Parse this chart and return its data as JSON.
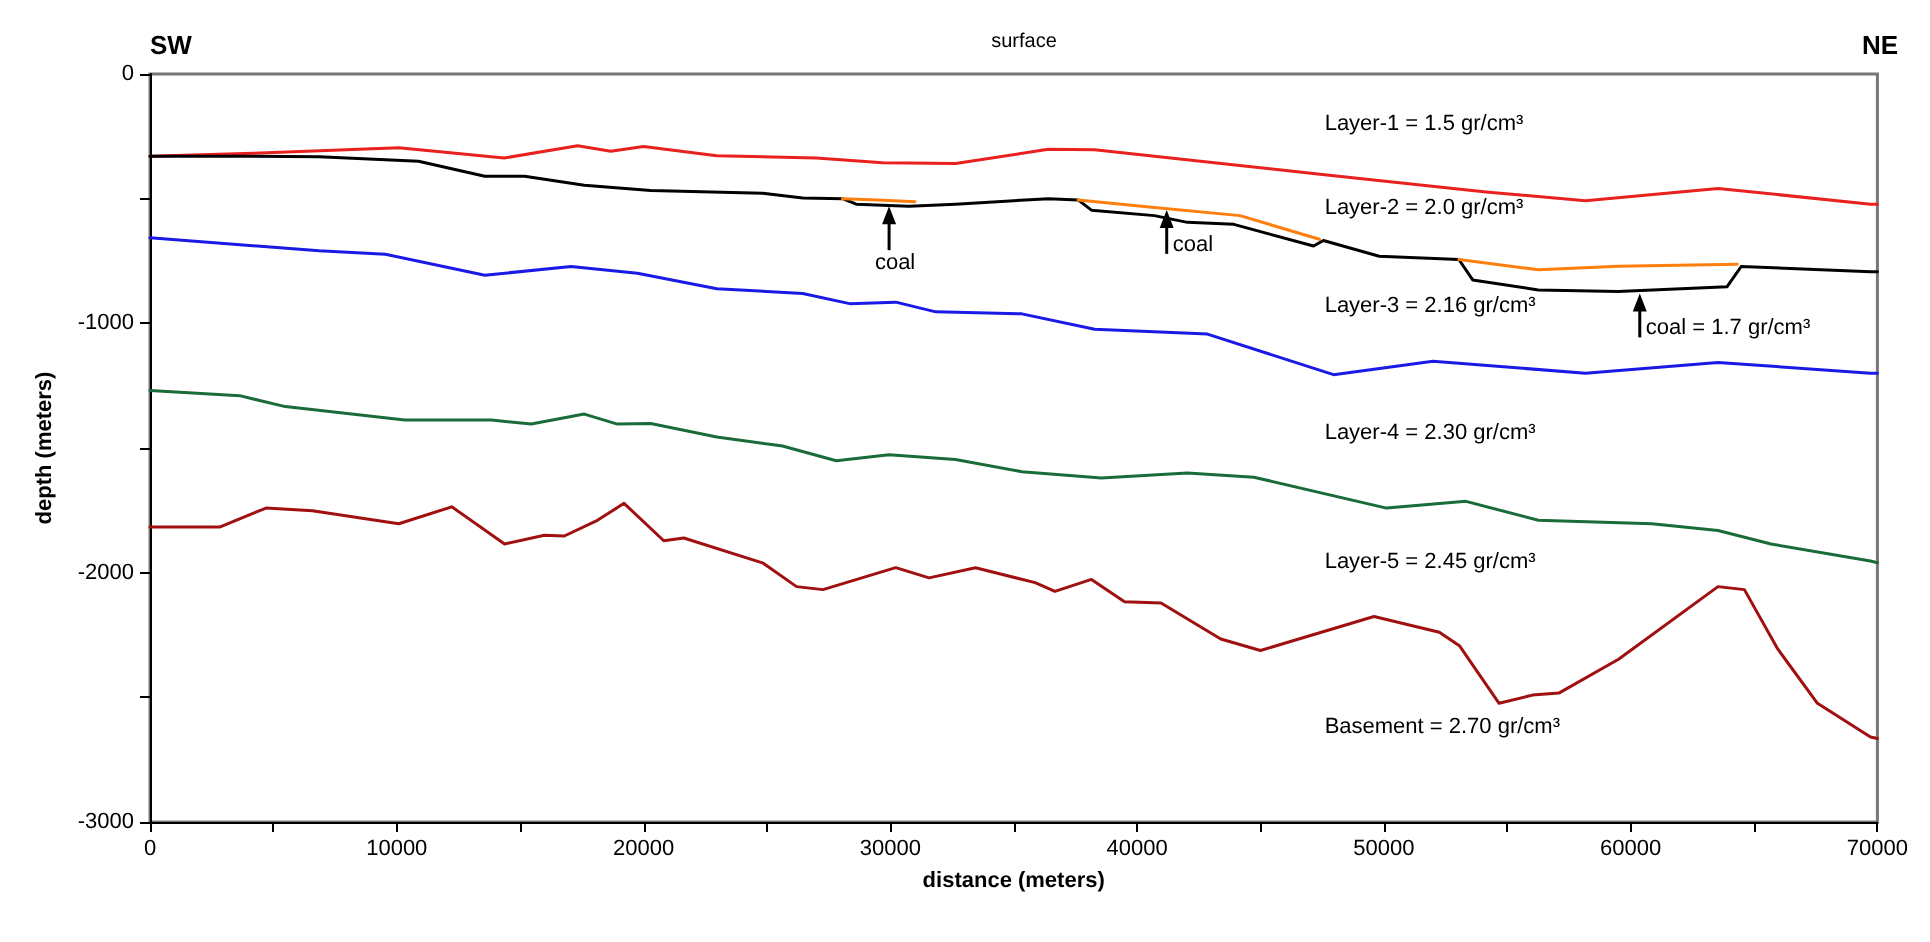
{
  "chart_data": {
    "type": "line",
    "xlabel": "distance (meters)",
    "ylabel": "depth (meters)",
    "xlim": [
      0,
      70000
    ],
    "ylim": [
      -3000,
      0
    ],
    "xticks": [
      0,
      {
        "value": 5000,
        "label": null
      },
      10000,
      {
        "value": 15000,
        "label": null
      },
      20000,
      {
        "value": 25000,
        "label": null
      },
      30000,
      {
        "value": 35000,
        "label": null
      },
      40000,
      {
        "value": 45000,
        "label": null
      },
      50000,
      {
        "value": 55000,
        "label": null
      },
      60000,
      {
        "value": 65000,
        "label": null
      },
      70000
    ],
    "yticks": [
      -3000,
      {
        "value": -2500,
        "label": null
      },
      -2000,
      {
        "value": -1500,
        "label": null
      },
      -1000,
      {
        "value": -500,
        "label": null
      },
      0
    ],
    "grid": false,
    "marker": "none",
    "line_style": "solid",
    "series": [
      {
        "color": "#e8201e",
        "x": [
          0,
          4170,
          10080,
          14350,
          17330,
          18670,
          20000,
          22970,
          27000,
          29680,
          32650,
          36400,
          38280,
          47690,
          54140,
          58170,
          63540,
          69720,
          70000
        ],
        "values": [
          -330,
          -318,
          -296,
          -337,
          -288,
          -310,
          -291,
          -328,
          -337,
          -356,
          -359,
          -302,
          -304,
          -405,
          -473,
          -508,
          -459,
          -522,
          -522
        ]
      },
      {
        "color": "#000000",
        "x": [
          0,
          4170,
          6850,
          10880,
          13570,
          15180,
          17600,
          20290,
          24830,
          26450,
          28060,
          28620,
          30760,
          32640,
          36400,
          37610,
          38150,
          40700,
          42040,
          43920,
          47150,
          47550,
          49810,
          53040,
          53600,
          56260,
          59490,
          63910,
          64480,
          69720,
          70000
        ],
        "values": [
          -330,
          -330,
          -332,
          -350,
          -410,
          -410,
          -446,
          -467,
          -478,
          -497,
          -500,
          -522,
          -530,
          -522,
          -500,
          -505,
          -546,
          -568,
          -595,
          -603,
          -690,
          -668,
          -731,
          -744,
          -826,
          -866,
          -872,
          -853,
          -772,
          -793,
          -793
        ]
      },
      {
        "color": "#ff7f0e",
        "x": [
          28060,
          29500,
          31000,
          33000,
          37610,
          40700,
          44170,
          47390,
          50000,
          53040,
          56260,
          59490,
          64320
        ],
        "values": [
          -500,
          -505,
          -512,
          null,
          -505,
          -535,
          -568,
          -663,
          null,
          -744,
          -785,
          -771,
          -763
        ]
      },
      {
        "color": "#1a1ae6",
        "x": [
          0,
          6850,
          9540,
          13570,
          17060,
          19750,
          22970,
          26450,
          28350,
          30220,
          31840,
          35330,
          38280,
          42850,
          47960,
          51990,
          58170,
          63540,
          69720,
          70000
        ],
        "values": [
          -657,
          -709,
          -723,
          -807,
          -772,
          -799,
          -861,
          -880,
          -921,
          -915,
          -954,
          -962,
          -1024,
          -1043,
          -1206,
          -1152,
          -1200,
          -1157,
          -1200,
          -1200
        ]
      },
      {
        "color": "#1a6b3a",
        "x": [
          0,
          3630,
          5480,
          10320,
          13840,
          15450,
          17600,
          18940,
          20290,
          22970,
          25630,
          27810,
          29950,
          32640,
          35330,
          38550,
          42040,
          44730,
          50110,
          53330,
          56260,
          60860,
          63540,
          65690,
          69720,
          70000
        ],
        "values": [
          -1269,
          -1290,
          -1334,
          -1388,
          -1388,
          -1404,
          -1364,
          -1404,
          -1402,
          -1456,
          -1492,
          -1551,
          -1527,
          -1546,
          -1595,
          -1620,
          -1600,
          -1617,
          -1741,
          -1714,
          -1790,
          -1804,
          -1831,
          -1885,
          -1953,
          -1960
        ]
      },
      {
        "color": "#a01010",
        "x": [
          0,
          2820,
          4700,
          6580,
          10080,
          12230,
          14370,
          15980,
          16790,
          18130,
          19210,
          20820,
          21630,
          24850,
          26200,
          27270,
          30220,
          31570,
          33450,
          35870,
          36670,
          38150,
          39490,
          40970,
          43390,
          45000,
          49600,
          52250,
          53060,
          54670,
          56020,
          57090,
          59510,
          63540,
          64610,
          65960,
          67570,
          69720,
          70000
        ],
        "values": [
          -1817,
          -1817,
          -1741,
          -1752,
          -1804,
          -1736,
          -1885,
          -1850,
          -1853,
          -1790,
          -1722,
          -1872,
          -1861,
          -1962,
          -2056,
          -2068,
          -1980,
          -2021,
          -1980,
          -2040,
          -2075,
          -2027,
          -2117,
          -2122,
          -2266,
          -2312,
          -2176,
          -2239,
          -2293,
          -2524,
          -2491,
          -2483,
          -2347,
          -2056,
          -2068,
          -2306,
          -2524,
          -2659,
          -2665
        ]
      }
    ],
    "annotations": [
      "SW",
      "surface",
      "NE",
      "Layer-1 = 1.5 gr/cm³",
      "Layer-2 = 2.0 gr/cm³",
      "Layer-3 = 2.16 gr/cm³",
      "Layer-4 = 2.30 gr/cm³",
      "Layer-5 = 2.45 gr/cm³",
      "Basement = 2.70 gr/cm³",
      {
        "text": "coal",
        "x": 29950,
        "y": -530
      },
      {
        "text": "coal",
        "x": 41200,
        "y": -545
      },
      {
        "text": "coal = 1.7 gr/cm³",
        "x": 60370,
        "y": -880
      }
    ]
  }
}
